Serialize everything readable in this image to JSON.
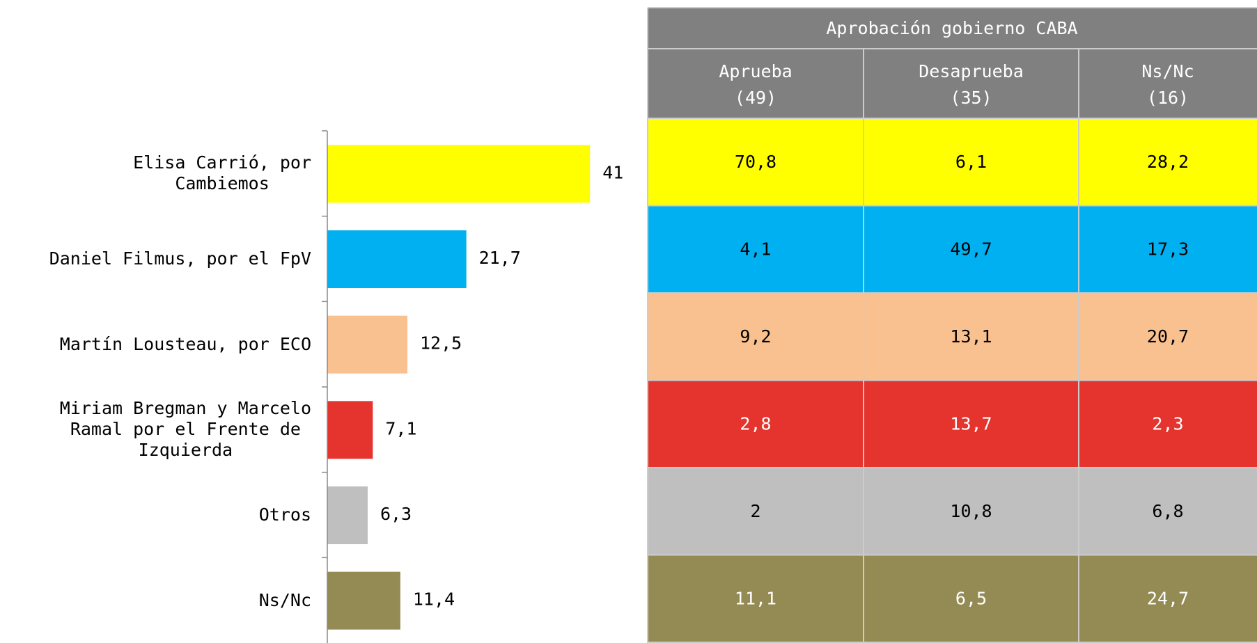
{
  "chart_data": {
    "type": "bar",
    "orientation": "horizontal",
    "categories": [
      "Elisa Carrió, por\nCambiemos",
      "Daniel Filmus, por el FpV",
      "Martín Lousteau, por ECO",
      "Miriam Bregman y Marcelo\nRamal por el Frente de\nIzquierda",
      "Otros",
      "Ns/Nc"
    ],
    "values": [
      41,
      21.7,
      12.5,
      7.1,
      6.3,
      11.4
    ],
    "value_labels": [
      "41",
      "21,7",
      "12,5",
      "7,1",
      "6,3",
      "11,4"
    ],
    "colors": [
      "#ffff00",
      "#00b0f0",
      "#f9c090",
      "#e5332d",
      "#bfbfbf",
      "#948a54"
    ],
    "xlim": [
      0,
      50
    ]
  },
  "table": {
    "title": "Aprobación gobierno CABA",
    "columns": [
      {
        "name": "Aprueba",
        "n": "(49)"
      },
      {
        "name": "Desaprueba",
        "n": "(35)"
      },
      {
        "name": "Ns/Nc",
        "n": "(16)"
      }
    ],
    "rows": [
      [
        "70,8",
        "6,1",
        "28,2"
      ],
      [
        "4,1",
        "49,7",
        "17,3"
      ],
      [
        "9,2",
        "13,1",
        "20,7"
      ],
      [
        "2,8",
        "13,7",
        "2,3"
      ],
      [
        "2",
        "10,8",
        "6,8"
      ],
      [
        "11,1",
        "6,5",
        "24,7"
      ]
    ]
  }
}
